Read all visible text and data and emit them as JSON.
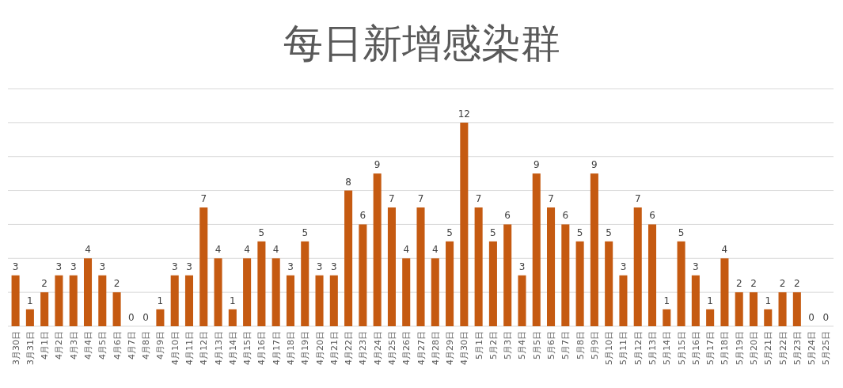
{
  "chart_data": {
    "type": "bar",
    "title": "每日新增感染群",
    "categories": [
      "3月30日",
      "3月31日",
      "4月1日",
      "4月2日",
      "4月3日",
      "4月4日",
      "4月5日",
      "4月6日",
      "4月7日",
      "4月8日",
      "4月9日",
      "4月10日",
      "4月11日",
      "4月12日",
      "4月13日",
      "4月14日",
      "4月15日",
      "4月16日",
      "4月17日",
      "4月18日",
      "4月19日",
      "4月20日",
      "4月21日",
      "4月22日",
      "4月23日",
      "4月24日",
      "4月25日",
      "4月26日",
      "4月27日",
      "4月28日",
      "4月29日",
      "4月30日",
      "5月1日",
      "5月2日",
      "5月3日",
      "5月4日",
      "5月5日",
      "5月6日",
      "5月7日",
      "5月8日",
      "5月9日",
      "5月10日",
      "5月11日",
      "5月12日",
      "5月13日",
      "5月14日",
      "5月15日",
      "5月16日",
      "5月17日",
      "5月18日",
      "5月19日",
      "5月20日",
      "5月21日",
      "5月22日",
      "5月23日",
      "5月24日",
      "5月25日"
    ],
    "values": [
      3,
      1,
      2,
      3,
      3,
      4,
      3,
      2,
      0,
      0,
      1,
      3,
      3,
      7,
      4,
      1,
      4,
      5,
      4,
      3,
      5,
      3,
      3,
      8,
      6,
      9,
      7,
      4,
      7,
      4,
      5,
      12,
      7,
      5,
      6,
      3,
      9,
      7,
      6,
      5,
      9,
      5,
      3,
      7,
      6,
      1,
      5,
      3,
      1,
      4,
      2,
      2,
      1,
      2,
      2,
      0,
      0
    ],
    "color": "#c55a11",
    "ylim": [
      0,
      14
    ],
    "yticks": [
      {
        "value": 0,
        "label": null
      },
      {
        "value": 2,
        "label": null
      },
      {
        "value": 4,
        "label": null
      },
      {
        "value": 6,
        "label": null
      },
      {
        "value": 8,
        "label": null
      },
      {
        "value": 10,
        "label": null
      },
      {
        "value": 12,
        "label": null
      },
      {
        "value": 14,
        "label": null
      }
    ],
    "tick_labels": "x",
    "grid": "y",
    "data_labels": true
  }
}
